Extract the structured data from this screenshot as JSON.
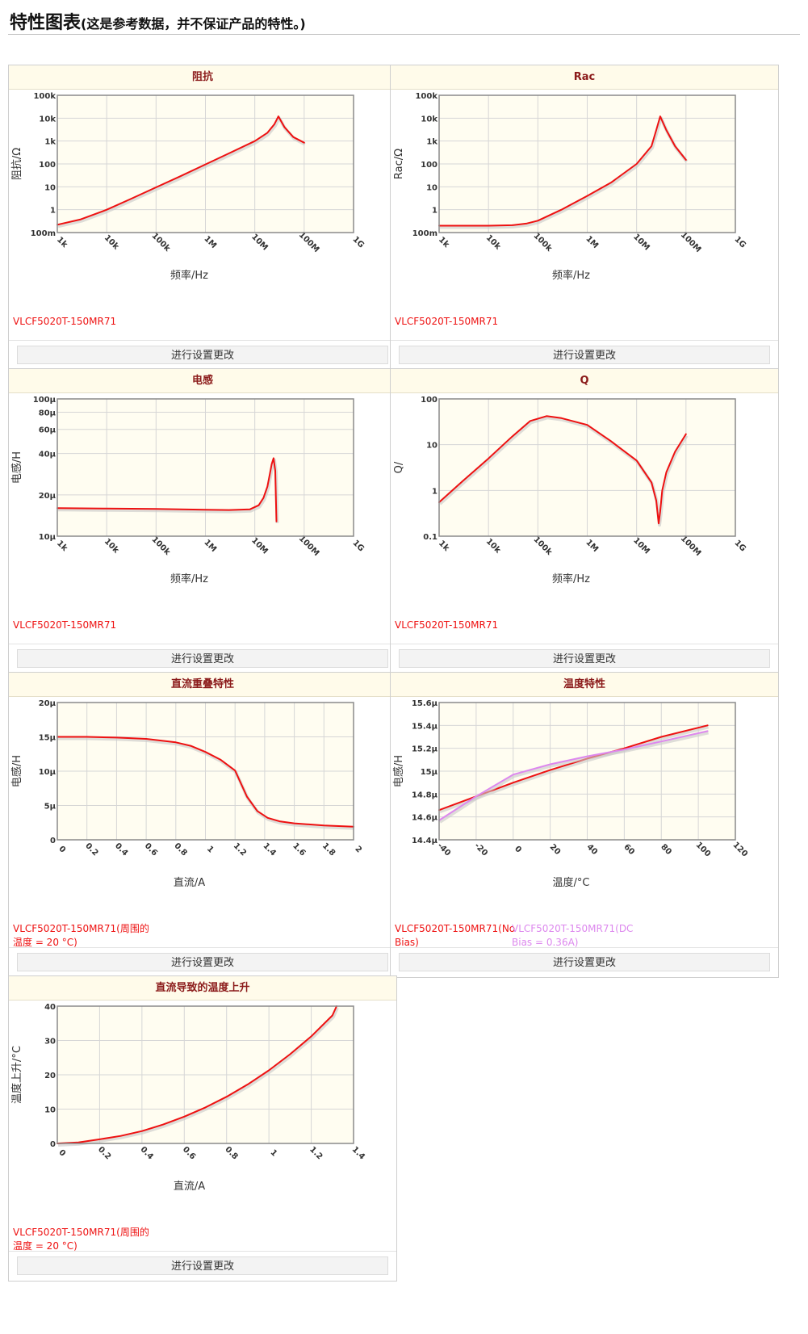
{
  "page": {
    "title": "特性图表",
    "subtitle": "(这是参考数据，并不保证产品的特性。)",
    "button_label": "进行设置更改"
  },
  "colors": {
    "series_red": "#ee1111",
    "series_violet": "#dd88ee",
    "plot_bg": "#fffdf1",
    "header_text": "#8b1a1a"
  },
  "charts": [
    {
      "id": "impedance",
      "title": "阻抗",
      "chart_data": {
        "type": "line",
        "title": "阻抗",
        "xlabel": "频率/Hz",
        "ylabel": "阻抗/Ω",
        "xscale": "log",
        "yscale": "log",
        "xlim": [
          1000,
          1000000000
        ],
        "ylim": [
          0.1,
          100000
        ],
        "xticks": [
          {
            "v": 1000,
            "label": "1k"
          },
          {
            "v": 10000,
            "label": "10k"
          },
          {
            "v": 100000,
            "label": "100k"
          },
          {
            "v": 1000000,
            "label": "1M"
          },
          {
            "v": 10000000,
            "label": "10M"
          },
          {
            "v": 100000000,
            "label": "100M"
          },
          {
            "v": 1000000000,
            "label": "1G"
          }
        ],
        "yticks": [
          {
            "v": 100000,
            "label": "100k"
          },
          {
            "v": 10000,
            "label": "10k"
          },
          {
            "v": 1000,
            "label": "1k"
          },
          {
            "v": 100,
            "label": "100"
          },
          {
            "v": 10,
            "label": "10"
          },
          {
            "v": 1,
            "label": "1"
          },
          {
            "v": 0.1,
            "label": "100m"
          }
        ],
        "series": [
          {
            "name": "VLCF5020T-150MR71",
            "color": "#ee1111",
            "x": [
              1000,
              3000,
              10000,
              30000,
              100000,
              300000,
              1000000,
              3000000,
              10000000,
              18000000,
              25000000,
              30000000,
              40000000,
              60000000,
              100000000
            ],
            "y": [
              0.22,
              0.38,
              1.0,
              2.9,
              9.5,
              28,
              95,
              290,
              1000,
              2300,
              5500,
              12000,
              4000,
              1500,
              850
            ]
          }
        ],
        "legend": [
          "VLCF5020T-150MR71"
        ]
      }
    },
    {
      "id": "rac",
      "title": "Rac",
      "chart_data": {
        "type": "line",
        "title": "Rac",
        "xlabel": "频率/Hz",
        "ylabel": "Rac/Ω",
        "xscale": "log",
        "yscale": "log",
        "xlim": [
          1000,
          1000000000
        ],
        "ylim": [
          0.1,
          100000
        ],
        "xticks": [
          {
            "v": 1000,
            "label": "1k"
          },
          {
            "v": 10000,
            "label": "10k"
          },
          {
            "v": 100000,
            "label": "100k"
          },
          {
            "v": 1000000,
            "label": "1M"
          },
          {
            "v": 10000000,
            "label": "10M"
          },
          {
            "v": 100000000,
            "label": "100M"
          },
          {
            "v": 1000000000,
            "label": "1G"
          }
        ],
        "yticks": [
          {
            "v": 100000,
            "label": "100k"
          },
          {
            "v": 10000,
            "label": "10k"
          },
          {
            "v": 1000,
            "label": "1k"
          },
          {
            "v": 100,
            "label": "100"
          },
          {
            "v": 10,
            "label": "10"
          },
          {
            "v": 1,
            "label": "1"
          },
          {
            "v": 0.1,
            "label": "100m"
          }
        ],
        "series": [
          {
            "name": "VLCF5020T-150MR71",
            "color": "#ee1111",
            "x": [
              1000,
              10000,
              30000,
              60000,
              100000,
              300000,
              1000000,
              3000000,
              10000000,
              20000000,
              25000000,
              30000000,
              40000000,
              60000000,
              100000000
            ],
            "y": [
              0.2,
              0.2,
              0.21,
              0.25,
              0.33,
              1.0,
              4.0,
              15,
              100,
              600,
              3000,
              12000,
              3000,
              600,
              150
            ]
          }
        ],
        "legend": [
          "VLCF5020T-150MR71"
        ]
      }
    },
    {
      "id": "inductance",
      "title": "电感",
      "chart_data": {
        "type": "line",
        "title": "电感",
        "xlabel": "频率/Hz",
        "ylabel": "电感/H",
        "xscale": "log",
        "yscale": "log",
        "xlim": [
          1000,
          1000000000
        ],
        "ylim": [
          1e-05,
          0.0001
        ],
        "xticks": [
          {
            "v": 1000,
            "label": "1k"
          },
          {
            "v": 10000,
            "label": "10k"
          },
          {
            "v": 100000,
            "label": "100k"
          },
          {
            "v": 1000000,
            "label": "1M"
          },
          {
            "v": 10000000,
            "label": "10M"
          },
          {
            "v": 100000000,
            "label": "100M"
          },
          {
            "v": 1000000000,
            "label": "1G"
          }
        ],
        "yticks": [
          {
            "v": 0.0001,
            "label": "100μ"
          },
          {
            "v": 8e-05,
            "label": "80μ"
          },
          {
            "v": 6e-05,
            "label": "60μ"
          },
          {
            "v": 4e-05,
            "label": "40μ"
          },
          {
            "v": 2e-05,
            "label": "20μ"
          },
          {
            "v": 1e-05,
            "label": "10μ"
          }
        ],
        "series": [
          {
            "name": "VLCF5020T-150MR71",
            "color": "#ee1111",
            "x": [
              1000,
              10000,
              100000,
              1000000,
              3000000,
              8000000,
              12000000,
              15000000,
              18000000,
              20000000,
              22000000,
              24000000,
              26000000,
              27500000
            ],
            "y": [
              1.6e-05,
              1.59e-05,
              1.58e-05,
              1.56e-05,
              1.55e-05,
              1.57e-05,
              1.68e-05,
              1.9e-05,
              2.3e-05,
              2.8e-05,
              3.35e-05,
              3.7e-05,
              3e-05,
              1.28e-05
            ]
          }
        ],
        "legend": [
          "VLCF5020T-150MR71"
        ]
      }
    },
    {
      "id": "q",
      "title": "Q",
      "chart_data": {
        "type": "line",
        "title": "Q",
        "xlabel": "频率/Hz",
        "ylabel": "Q/",
        "xscale": "log",
        "yscale": "log",
        "xlim": [
          1000,
          1000000000
        ],
        "ylim": [
          0.1,
          100
        ],
        "xticks": [
          {
            "v": 1000,
            "label": "1k"
          },
          {
            "v": 10000,
            "label": "10k"
          },
          {
            "v": 100000,
            "label": "100k"
          },
          {
            "v": 1000000,
            "label": "1M"
          },
          {
            "v": 10000000,
            "label": "10M"
          },
          {
            "v": 100000000,
            "label": "100M"
          },
          {
            "v": 1000000000,
            "label": "1G"
          }
        ],
        "yticks": [
          {
            "v": 100,
            "label": "100"
          },
          {
            "v": 10,
            "label": "10"
          },
          {
            "v": 1,
            "label": "1"
          },
          {
            "v": 0.1,
            "label": "0.1"
          }
        ],
        "series": [
          {
            "name": "VLCF5020T-150MR71",
            "color": "#ee1111",
            "x": [
              1000,
              3000,
              10000,
              30000,
              70000,
              150000,
              300000,
              1000000,
              3000000,
              10000000,
              20000000,
              25000000,
              28000000,
              30000000,
              33000000,
              40000000,
              60000000,
              100000000
            ],
            "y": [
              0.55,
              1.6,
              5.0,
              15,
              33,
              42,
              38,
              27,
              12,
              4.5,
              1.5,
              0.6,
              0.19,
              0.35,
              1.0,
              2.5,
              7,
              17
            ]
          }
        ],
        "legend": [
          "VLCF5020T-150MR71"
        ]
      }
    },
    {
      "id": "dc_bias",
      "title": "直流重叠特性",
      "chart_data": {
        "type": "line",
        "title": "直流重叠特性",
        "xlabel": "直流/A",
        "ylabel": "电感/H",
        "xscale": "linear",
        "yscale": "linear",
        "xlim": [
          0,
          2
        ],
        "ylim": [
          0,
          2e-05
        ],
        "xticks": [
          {
            "v": 0,
            "label": "0"
          },
          {
            "v": 0.2,
            "label": "0.2"
          },
          {
            "v": 0.4,
            "label": "0.4"
          },
          {
            "v": 0.6,
            "label": "0.6"
          },
          {
            "v": 0.8,
            "label": "0.8"
          },
          {
            "v": 1,
            "label": "1"
          },
          {
            "v": 1.2,
            "label": "1.2"
          },
          {
            "v": 1.4,
            "label": "1.4"
          },
          {
            "v": 1.6,
            "label": "1.6"
          },
          {
            "v": 1.8,
            "label": "1.8"
          },
          {
            "v": 2,
            "label": "2"
          }
        ],
        "yticks": [
          {
            "v": 2e-05,
            "label": "20μ"
          },
          {
            "v": 1.5e-05,
            "label": "15μ"
          },
          {
            "v": 1e-05,
            "label": "10μ"
          },
          {
            "v": 5e-06,
            "label": "5μ"
          },
          {
            "v": 0,
            "label": "0"
          }
        ],
        "series": [
          {
            "name": "VLCF5020T-150MR71(周围的温度 = 20 °C)",
            "color": "#ee1111",
            "x": [
              0,
              0.2,
              0.4,
              0.6,
              0.8,
              0.9,
              1.0,
              1.1,
              1.2,
              1.28,
              1.35,
              1.42,
              1.5,
              1.6,
              1.8,
              2.0
            ],
            "y": [
              1.5e-05,
              1.5e-05,
              1.49e-05,
              1.47e-05,
              1.42e-05,
              1.37e-05,
              1.28e-05,
              1.17e-05,
              1.01e-05,
              6.3e-06,
              4.2e-06,
              3.2e-06,
              2.7e-06,
              2.4e-06,
              2.1e-06,
              1.9e-06
            ]
          }
        ],
        "legend": [
          "VLCF5020T-150MR71(周围的温度 = 20 °C)"
        ]
      }
    },
    {
      "id": "temperature",
      "title": "温度特性",
      "chart_data": {
        "type": "line",
        "title": "温度特性",
        "xlabel": "温度/°C",
        "ylabel": "电感/H",
        "xscale": "linear",
        "yscale": "linear",
        "xlim": [
          -40,
          120
        ],
        "ylim": [
          1.44e-05,
          1.56e-05
        ],
        "xticks": [
          {
            "v": -40,
            "label": "-40"
          },
          {
            "v": -20,
            "label": "-20"
          },
          {
            "v": 0,
            "label": "0"
          },
          {
            "v": 20,
            "label": "20"
          },
          {
            "v": 40,
            "label": "40"
          },
          {
            "v": 60,
            "label": "60"
          },
          {
            "v": 80,
            "label": "80"
          },
          {
            "v": 100,
            "label": "100"
          },
          {
            "v": 120,
            "label": "120"
          }
        ],
        "yticks": [
          {
            "v": 1.56e-05,
            "label": "15.6μ"
          },
          {
            "v": 1.54e-05,
            "label": "15.4μ"
          },
          {
            "v": 1.52e-05,
            "label": "15.2μ"
          },
          {
            "v": 1.5e-05,
            "label": "15μ"
          },
          {
            "v": 1.48e-05,
            "label": "14.8μ"
          },
          {
            "v": 1.46e-05,
            "label": "14.6μ"
          },
          {
            "v": 1.44e-05,
            "label": "14.4μ"
          }
        ],
        "series": [
          {
            "name": "VLCF5020T-150MR71(No Bias)",
            "color": "#ee1111",
            "x": [
              -40,
              -20,
              0,
              20,
              40,
              60,
              80,
              105
            ],
            "y": [
              1.466e-05,
              1.478e-05,
              1.49e-05,
              1.501e-05,
              1.511e-05,
              1.52e-05,
              1.53e-05,
              1.54e-05
            ]
          },
          {
            "name": "VLCF5020T-150MR71(DC Bias = 0.36A)",
            "color": "#dd88ee",
            "x": [
              -40,
              -20,
              0,
              20,
              40,
              60,
              80,
              105
            ],
            "y": [
              1.457e-05,
              1.478e-05,
              1.497e-05,
              1.506e-05,
              1.513e-05,
              1.519e-05,
              1.526e-05,
              1.535e-05
            ]
          }
        ],
        "legend": [
          "VLCF5020T-150MR71(No Bias)",
          "VLCF5020T-150MR71(DC Bias = 0.36A)"
        ]
      }
    },
    {
      "id": "temp_rise",
      "title": "直流导致的温度上升",
      "chart_data": {
        "type": "line",
        "title": "直流导致的温度上升",
        "xlabel": "直流/A",
        "ylabel": "温度上升/°C",
        "xscale": "linear",
        "yscale": "linear",
        "xlim": [
          0,
          1.4
        ],
        "ylim": [
          0,
          40
        ],
        "xticks": [
          {
            "v": 0,
            "label": "0"
          },
          {
            "v": 0.2,
            "label": "0.2"
          },
          {
            "v": 0.4,
            "label": "0.4"
          },
          {
            "v": 0.6,
            "label": "0.6"
          },
          {
            "v": 0.8,
            "label": "0.8"
          },
          {
            "v": 1,
            "label": "1"
          },
          {
            "v": 1.2,
            "label": "1.2"
          },
          {
            "v": 1.4,
            "label": "1.4"
          }
        ],
        "yticks": [
          {
            "v": 40,
            "label": "40"
          },
          {
            "v": 30,
            "label": "30"
          },
          {
            "v": 20,
            "label": "20"
          },
          {
            "v": 10,
            "label": "10"
          },
          {
            "v": 0,
            "label": "0"
          }
        ],
        "series": [
          {
            "name": "VLCF5020T-150MR71(周围的温度 = 20 °C)",
            "color": "#ee1111",
            "x": [
              0,
              0.1,
              0.2,
              0.3,
              0.4,
              0.5,
              0.6,
              0.7,
              0.8,
              0.9,
              1.0,
              1.1,
              1.2,
              1.3,
              1.32
            ],
            "y": [
              0,
              0.3,
              1.2,
              2.2,
              3.6,
              5.5,
              7.8,
              10.5,
              13.6,
              17.2,
              21.3,
              26,
              31.2,
              37.3,
              40
            ]
          }
        ],
        "legend": [
          "VLCF5020T-150MR71(周围的温度 = 20 °C)"
        ]
      }
    }
  ]
}
